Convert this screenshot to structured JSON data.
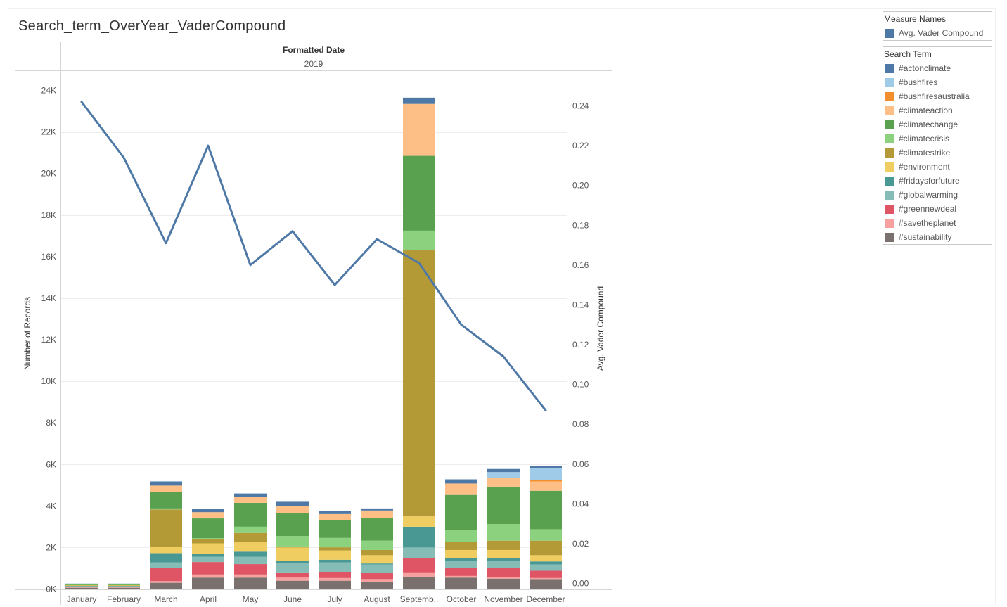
{
  "title": "Search_term_OverYear_VaderCompound",
  "chart_data": {
    "type": "bar",
    "stacked": true,
    "header": "Formatted Date",
    "year": "2019",
    "categories": [
      "January",
      "February",
      "March",
      "April",
      "May",
      "June",
      "July",
      "August",
      "Septemb..",
      "October",
      "November",
      "December"
    ],
    "ylabel": "Number of Records",
    "ylim": [
      0,
      24000
    ],
    "y_ticks": [
      0,
      2000,
      4000,
      6000,
      8000,
      10000,
      12000,
      14000,
      16000,
      18000,
      20000,
      22000,
      24000
    ],
    "y_tick_labels": [
      "0K",
      "2K",
      "4K",
      "6K",
      "8K",
      "10K",
      "12K",
      "14K",
      "16K",
      "18K",
      "20K",
      "22K",
      "24K"
    ],
    "y2label": "Avg. Vader Compound",
    "y2lim": [
      0,
      0.24
    ],
    "y2_ticks": [
      0,
      0.02,
      0.04,
      0.06,
      0.08,
      0.1,
      0.12,
      0.14,
      0.16,
      0.18,
      0.2,
      0.22,
      0.24
    ],
    "y2_tick_labels": [
      "0.00",
      "0.02",
      "0.04",
      "0.06",
      "0.08",
      "0.10",
      "0.12",
      "0.14",
      "0.16",
      "0.18",
      "0.20",
      "0.22",
      "0.24"
    ],
    "grid": true,
    "series": [
      {
        "name": "#sustainability",
        "color": "#7a706d",
        "values": [
          60,
          60,
          300,
          550,
          550,
          400,
          400,
          350,
          600,
          550,
          500,
          480
        ]
      },
      {
        "name": "#savetheplanet",
        "color": "#f7a0a0",
        "values": [
          20,
          20,
          80,
          150,
          150,
          150,
          130,
          130,
          200,
          80,
          80,
          50
        ]
      },
      {
        "name": "#greennewdeal",
        "color": "#e05565",
        "values": [
          40,
          40,
          650,
          600,
          500,
          250,
          300,
          300,
          700,
          400,
          450,
          350
        ]
      },
      {
        "name": "#globalwarming",
        "color": "#86bcb6",
        "values": [
          20,
          20,
          250,
          250,
          350,
          450,
          450,
          400,
          500,
          300,
          300,
          300
        ]
      },
      {
        "name": "#fridaysforfuture",
        "color": "#499894",
        "values": [
          10,
          10,
          450,
          150,
          250,
          100,
          130,
          50,
          1000,
          150,
          150,
          150
        ]
      },
      {
        "name": "#environment",
        "color": "#f0cd60",
        "values": [
          20,
          20,
          300,
          500,
          450,
          650,
          450,
          400,
          500,
          400,
          400,
          300
        ]
      },
      {
        "name": "#climatestrike",
        "color": "#b39a36",
        "values": [
          20,
          20,
          1800,
          200,
          450,
          50,
          150,
          250,
          12800,
          400,
          450,
          700
        ]
      },
      {
        "name": "#climatecrisis",
        "color": "#8cd17d",
        "values": [
          10,
          10,
          50,
          50,
          300,
          500,
          450,
          450,
          950,
          550,
          800,
          550
        ]
      },
      {
        "name": "#climatechange",
        "color": "#59a14f",
        "values": [
          30,
          30,
          800,
          950,
          1150,
          1100,
          850,
          1100,
          3600,
          1700,
          1800,
          1850
        ]
      },
      {
        "name": "#climateaction",
        "color": "#fdbf86",
        "values": [
          10,
          10,
          300,
          300,
          300,
          350,
          300,
          350,
          2500,
          550,
          400,
          450
        ]
      },
      {
        "name": "#bushfiresaustralia",
        "color": "#f28e2b",
        "values": [
          0,
          0,
          0,
          0,
          0,
          0,
          0,
          0,
          0,
          0,
          0,
          50
        ]
      },
      {
        "name": "#bushfires",
        "color": "#a0cbe8",
        "values": [
          0,
          0,
          0,
          0,
          0,
          0,
          0,
          0,
          0,
          0,
          300,
          600
        ]
      },
      {
        "name": "#actonclimate",
        "color": "#4e79a7",
        "values": [
          20,
          20,
          200,
          150,
          150,
          200,
          150,
          100,
          300,
          200,
          150,
          100
        ]
      }
    ],
    "line_series": {
      "name": "Avg. Vader Compound",
      "color": "#4e79a7",
      "axis": "right",
      "values": [
        0.242,
        0.214,
        0.171,
        0.22,
        0.16,
        0.177,
        0.15,
        0.173,
        0.161,
        0.13,
        0.114,
        0.087
      ]
    }
  },
  "legend_measure": {
    "title": "Measure Names",
    "items": [
      {
        "label": "Avg. Vader Compound",
        "color": "#4e79a7"
      }
    ]
  },
  "legend_search": {
    "title": "Search Term",
    "items": [
      {
        "label": "#actonclimate",
        "color": "#4e79a7"
      },
      {
        "label": "#bushfires",
        "color": "#a0cbe8"
      },
      {
        "label": "#bushfiresaustralia",
        "color": "#f28e2b"
      },
      {
        "label": "#climateaction",
        "color": "#fdbf86"
      },
      {
        "label": "#climatechange",
        "color": "#59a14f"
      },
      {
        "label": "#climatecrisis",
        "color": "#8cd17d"
      },
      {
        "label": "#climatestrike",
        "color": "#b39a36"
      },
      {
        "label": "#environment",
        "color": "#f0cd60"
      },
      {
        "label": "#fridaysforfuture",
        "color": "#499894"
      },
      {
        "label": "#globalwarming",
        "color": "#86bcb6"
      },
      {
        "label": "#greennewdeal",
        "color": "#e05565"
      },
      {
        "label": "#savetheplanet",
        "color": "#f7a0a0"
      },
      {
        "label": "#sustainability",
        "color": "#7a706d"
      }
    ]
  }
}
